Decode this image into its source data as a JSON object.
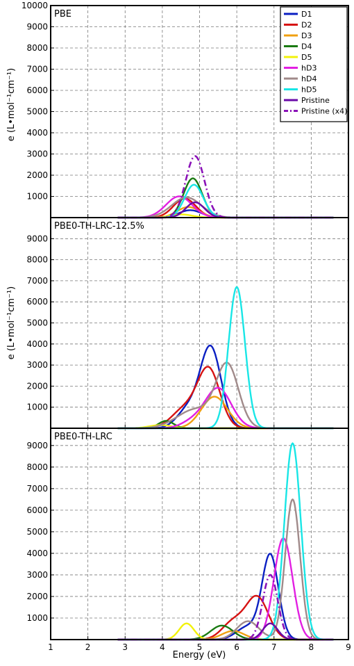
{
  "colors": {
    "D1": "#0a1fc2",
    "D2": "#d61212",
    "D3": "#f0a010",
    "D4": "#1a7a12",
    "D5": "#f2f20a",
    "hD3": "#e21fe2",
    "hD4": "#a08a8a",
    "hD5": "#18e6e6",
    "Pristine": "#6a0aa8",
    "Pristine (x4)": "#8a12b8"
  },
  "chart_data": {
    "type": "line",
    "xlabel": "Energy (eV)",
    "ylabel": "e (L•mol⁻¹cm⁻¹)",
    "xlim": [
      1,
      9
    ],
    "x_ticks": [
      "1",
      "2",
      "3",
      "4",
      "5",
      "6",
      "7",
      "8",
      "9"
    ],
    "legend": {
      "placement": "top-right of first panel",
      "entries": [
        "D1",
        "D2",
        "D3",
        "D4",
        "D5",
        "hD3",
        "hD4",
        "hD5",
        "Pristine",
        "Pristine (x4)"
      ]
    },
    "panels": [
      {
        "title": "PBE",
        "ylim": [
          0,
          10000
        ],
        "y_ticks": [
          "1000",
          "2000",
          "3000",
          "4000",
          "5000",
          "6000",
          "7000",
          "8000",
          "9000",
          "10000"
        ],
        "series": [
          {
            "name": "D1",
            "peaks": [
              {
                "center": 4.75,
                "height": 350,
                "width": 0.3
              }
            ]
          },
          {
            "name": "D2",
            "peaks": [
              {
                "center": 4.6,
                "height": 900,
                "width": 0.3
              }
            ]
          },
          {
            "name": "D3",
            "peaks": [
              {
                "center": 4.7,
                "height": 500,
                "width": 0.3
              }
            ]
          },
          {
            "name": "D4",
            "peaks": [
              {
                "center": 4.82,
                "height": 1850,
                "width": 0.25
              }
            ]
          },
          {
            "name": "D5",
            "peaks": [
              {
                "center": 4.5,
                "height": 150,
                "width": 0.3
              }
            ]
          },
          {
            "name": "hD3",
            "peaks": [
              {
                "center": 4.45,
                "height": 1000,
                "width": 0.35
              }
            ]
          },
          {
            "name": "hD4",
            "peaks": [
              {
                "center": 4.65,
                "height": 950,
                "width": 0.4
              }
            ]
          },
          {
            "name": "hD5",
            "peaks": [
              {
                "center": 4.85,
                "height": 1550,
                "width": 0.25
              }
            ]
          },
          {
            "name": "Pristine",
            "peaks": [
              {
                "center": 4.88,
                "height": 720,
                "width": 0.25
              }
            ]
          },
          {
            "name": "Pristine (x4)",
            "dashed": true,
            "peaks": [
              {
                "center": 4.88,
                "height": 2900,
                "width": 0.25
              }
            ]
          }
        ]
      },
      {
        "title": "PBE0-TH-LRC-12.5%",
        "ylim": [
          0,
          10000
        ],
        "y_ticks": [
          "1000",
          "2000",
          "3000",
          "4000",
          "5000",
          "6000",
          "7000",
          "8000",
          "9000"
        ],
        "series": [
          {
            "name": "D1",
            "peaks": [
              {
                "center": 5.3,
                "height": 3800,
                "width": 0.28
              },
              {
                "center": 4.7,
                "height": 900,
                "width": 0.3
              }
            ]
          },
          {
            "name": "D2",
            "peaks": [
              {
                "center": 5.25,
                "height": 2750,
                "width": 0.3
              },
              {
                "center": 4.6,
                "height": 900,
                "width": 0.35
              }
            ]
          },
          {
            "name": "D3",
            "peaks": [
              {
                "center": 5.4,
                "height": 1500,
                "width": 0.35
              }
            ]
          },
          {
            "name": "D4",
            "peaks": [
              {
                "center": 4.1,
                "height": 350,
                "width": 0.2
              }
            ]
          },
          {
            "name": "D5",
            "peaks": [
              {
                "center": 3.95,
                "height": 150,
                "width": 0.3
              }
            ]
          },
          {
            "name": "hD3",
            "peaks": [
              {
                "center": 5.5,
                "height": 1900,
                "width": 0.35
              },
              {
                "center": 4.8,
                "height": 300,
                "width": 0.3
              }
            ]
          },
          {
            "name": "hD4",
            "peaks": [
              {
                "center": 5.75,
                "height": 2900,
                "width": 0.3
              },
              {
                "center": 4.9,
                "height": 900,
                "width": 0.5
              }
            ]
          },
          {
            "name": "hD5",
            "peaks": [
              {
                "center": 6.0,
                "height": 6700,
                "width": 0.22
              }
            ]
          },
          {
            "name": "Pristine",
            "peaks": []
          },
          {
            "name": "Pristine (x4)",
            "dashed": true,
            "peaks": []
          }
        ]
      },
      {
        "title": "PBE0-TH-LRC",
        "ylim": [
          0,
          9800
        ],
        "y_ticks": [
          "1000",
          "2000",
          "3000",
          "4000",
          "5000",
          "6000",
          "7000",
          "8000",
          "9000"
        ],
        "series": [
          {
            "name": "D1",
            "peaks": [
              {
                "center": 6.9,
                "height": 3900,
                "width": 0.22
              },
              {
                "center": 6.3,
                "height": 600,
                "width": 0.3
              }
            ]
          },
          {
            "name": "D2",
            "peaks": [
              {
                "center": 6.55,
                "height": 1950,
                "width": 0.3
              },
              {
                "center": 5.9,
                "height": 800,
                "width": 0.3
              }
            ]
          },
          {
            "name": "D3",
            "peaks": [
              {
                "center": 5.9,
                "height": 400,
                "width": 0.3
              }
            ]
          },
          {
            "name": "D4",
            "peaks": [
              {
                "center": 5.6,
                "height": 650,
                "width": 0.3
              }
            ]
          },
          {
            "name": "D5",
            "peaks": [
              {
                "center": 4.65,
                "height": 750,
                "width": 0.2
              }
            ]
          },
          {
            "name": "hD3",
            "peaks": [
              {
                "center": 7.25,
                "height": 4700,
                "width": 0.25
              }
            ]
          },
          {
            "name": "hD4",
            "peaks": [
              {
                "center": 7.5,
                "height": 6500,
                "width": 0.2
              },
              {
                "center": 6.3,
                "height": 850,
                "width": 0.3
              }
            ]
          },
          {
            "name": "hD5",
            "peaks": [
              {
                "center": 7.5,
                "height": 9100,
                "width": 0.22
              }
            ]
          },
          {
            "name": "Pristine",
            "peaks": [
              {
                "center": 6.9,
                "height": 750,
                "width": 0.2
              }
            ]
          },
          {
            "name": "Pristine (x4)",
            "dashed": true,
            "peaks": [
              {
                "center": 6.9,
                "height": 3000,
                "width": 0.2
              }
            ]
          }
        ]
      }
    ]
  }
}
